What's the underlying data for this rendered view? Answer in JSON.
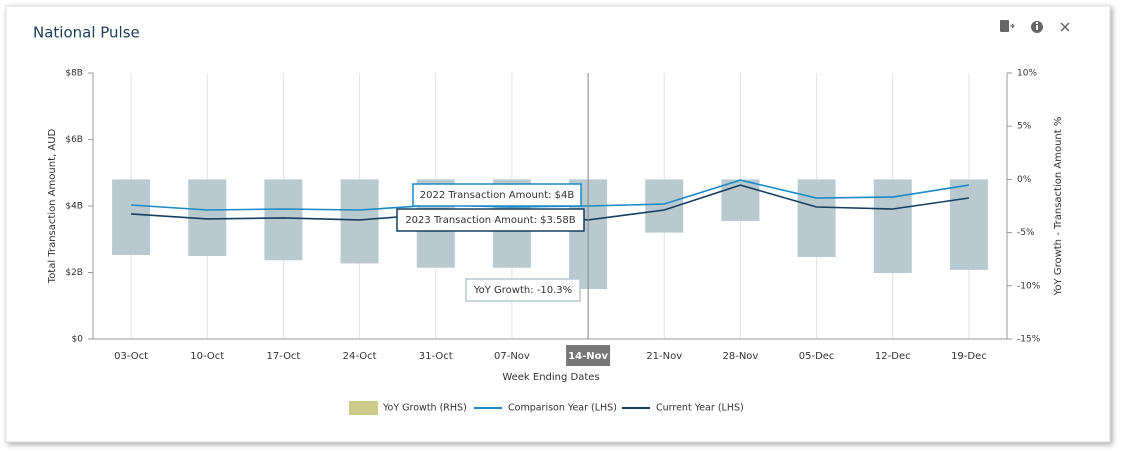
{
  "card": {
    "title": "National Pulse"
  },
  "chart_data": {
    "type": "combo",
    "x_label": "Week Ending Dates",
    "y_label": "Total Transaction Amount, AUD",
    "y2_label": "YoY Growth - Transaction Amount %",
    "categories": [
      "03-Oct",
      "10-Oct",
      "17-Oct",
      "24-Oct",
      "31-Oct",
      "07-Nov",
      "14-Nov",
      "21-Nov",
      "28-Nov",
      "05-Dec",
      "12-Dec",
      "19-Dec"
    ],
    "ylim": [
      0,
      8
    ],
    "yticks": [
      {
        "value": 0,
        "label": "$0"
      },
      {
        "value": 2,
        "label": "$2B"
      },
      {
        "value": 4,
        "label": "$4B"
      },
      {
        "value": 6,
        "label": "$6B"
      },
      {
        "value": 8,
        "label": "$8B"
      }
    ],
    "y2lim": [
      -15,
      10
    ],
    "y2ticks": [
      {
        "value": -15,
        "label": "-15%"
      },
      {
        "value": -10,
        "label": "-10%"
      },
      {
        "value": -5,
        "label": "-5%"
      },
      {
        "value": 0,
        "label": "0%"
      },
      {
        "value": 5,
        "label": "5%"
      },
      {
        "value": 10,
        "label": "10%"
      }
    ],
    "grid": true,
    "highlight_index": 6,
    "series": [
      {
        "name": "YoY Growth (RHS)",
        "type": "bar",
        "axis": "y2",
        "color": "#b8c9d0",
        "legend_color": "#cdc98d",
        "values": [
          -7.1,
          -7.2,
          -7.6,
          -7.9,
          -8.3,
          -8.3,
          -10.3,
          -5.0,
          -3.9,
          -7.3,
          -8.8,
          -8.5
        ]
      },
      {
        "name": "Comparison Year (LHS)",
        "type": "line",
        "color": "#1b8ac6",
        "values": [
          4.03,
          3.88,
          3.91,
          3.88,
          4.03,
          3.97,
          4.0,
          4.06,
          4.78,
          4.24,
          4.27,
          4.63
        ]
      },
      {
        "name": "Current Year (LHS)",
        "type": "line",
        "color": "#163f5f",
        "values": [
          3.76,
          3.61,
          3.64,
          3.58,
          3.76,
          3.82,
          3.58,
          3.88,
          4.63,
          3.97,
          3.91,
          4.24
        ]
      }
    ],
    "tooltips": [
      "2022 Transaction Amount: $4B",
      "2023 Transaction Amount: $3.58B",
      "YoY Growth: -10.3%"
    ]
  }
}
